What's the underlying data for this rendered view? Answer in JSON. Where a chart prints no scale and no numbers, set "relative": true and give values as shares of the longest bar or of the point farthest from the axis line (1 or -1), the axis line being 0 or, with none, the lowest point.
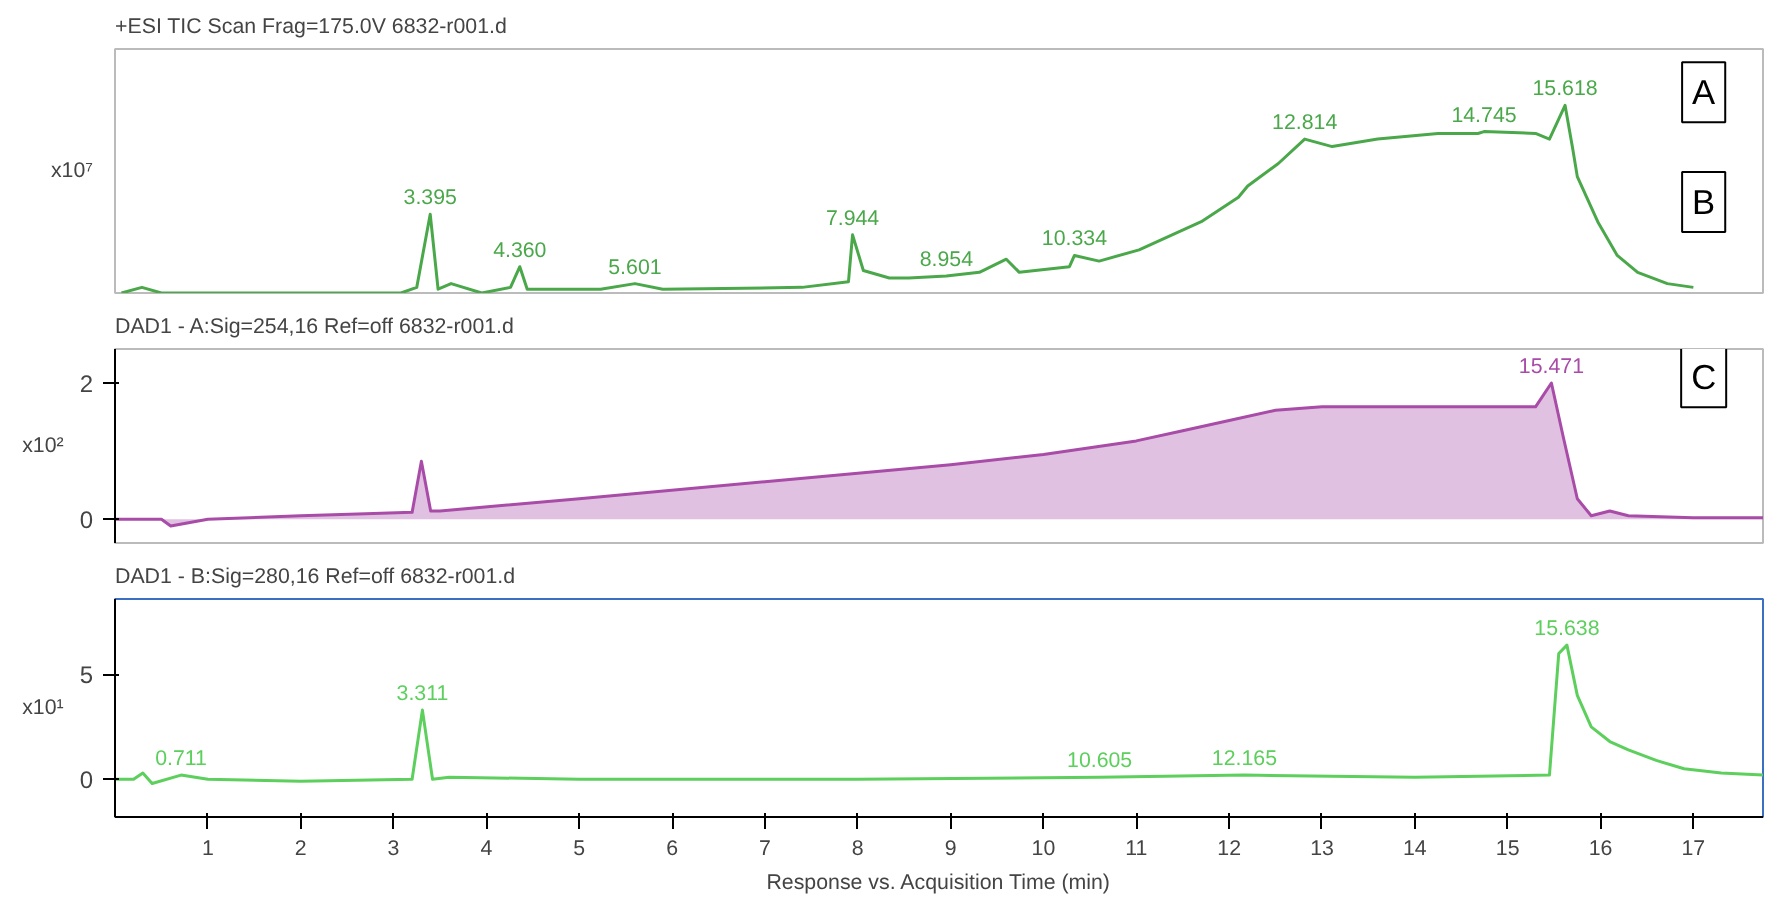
{
  "chart_data": [
    {
      "type": "line",
      "title": "+ESI TIC Scan Frag=175.0V 6832-r001.d",
      "ylabel": "x10⁷",
      "relative": true,
      "xlim": [
        0,
        17.75
      ],
      "tick_labels": "y",
      "series": [
        {
          "color": "#4aa84a",
          "x": [
            0.07,
            0.29,
            0.5,
            3.08,
            3.25,
            3.395,
            3.48,
            3.62,
            3.95,
            4.26,
            4.36,
            4.44,
            5.23,
            5.6,
            5.9,
            7.4,
            7.9,
            7.944,
            8.06,
            8.34,
            8.55,
            8.954,
            9.31,
            9.6,
            9.74,
            10.28,
            10.334,
            10.6,
            11.03,
            11.7,
            12.1,
            12.2,
            12.53,
            12.814,
            13.11,
            13.6,
            14.25,
            14.68,
            14.745,
            15.3,
            15.45,
            15.618,
            15.7,
            15.75,
            15.97,
            16.18,
            16.4,
            16.72,
            17.0
          ],
          "values": [
            0,
            0.03,
            0,
            0,
            0.03,
            0.42,
            0.02,
            0.05,
            0,
            0.03,
            0.14,
            0.02,
            0.02,
            0.05,
            0.02,
            0.03,
            0.06,
            0.31,
            0.12,
            0.08,
            0.08,
            0.09,
            0.11,
            0.18,
            0.11,
            0.14,
            0.2,
            0.17,
            0.23,
            0.38,
            0.51,
            0.57,
            0.69,
            0.82,
            0.78,
            0.82,
            0.85,
            0.85,
            0.86,
            0.85,
            0.82,
            1.0,
            0.77,
            0.62,
            0.38,
            0.2,
            0.11,
            0.05,
            0.03
          ]
        }
      ],
      "annotations": [
        {
          "text": "3.395",
          "x": 3.395,
          "y": 0.42
        },
        {
          "text": "4.360",
          "x": 4.36,
          "y": 0.14
        },
        {
          "text": "5.601",
          "x": 5.6,
          "y": 0.05
        },
        {
          "text": "7.944",
          "x": 7.944,
          "y": 0.31
        },
        {
          "text": "8.954",
          "x": 8.954,
          "y": 0.09
        },
        {
          "text": "10.334",
          "x": 10.334,
          "y": 0.2
        },
        {
          "text": "12.814",
          "x": 12.814,
          "y": 0.82
        },
        {
          "text": "14.745",
          "x": 14.745,
          "y": 0.86
        },
        {
          "text": "15.618",
          "x": 15.618,
          "y": 1.0
        },
        "A",
        "B"
      ]
    },
    {
      "type": "line",
      "title": "DAD1 - A:Sig=254,16  Ref=off 6832-r001.d",
      "ylabel": "x10²",
      "xlim": [
        0,
        17.75
      ],
      "ylim": [
        -0.35,
        2.5
      ],
      "yticks": [
        0,
        2
      ],
      "tick_labels": "y",
      "series": [
        {
          "type": "area",
          "color": "#a84ca8",
          "x": [
            0,
            0.5,
            0.6,
            1,
            2,
            2.7,
            3.2,
            3.3,
            3.4,
            3.5,
            5,
            7,
            9,
            10,
            11,
            11.5,
            12,
            12.5,
            13,
            14,
            15,
            15.3,
            15.471,
            15.6,
            15.75,
            15.9,
            16.1,
            16.3,
            17,
            17.75
          ],
          "values": [
            0,
            0,
            -0.1,
            0,
            0.05,
            0.08,
            0.1,
            0.85,
            0.12,
            0.12,
            0.3,
            0.55,
            0.8,
            0.95,
            1.15,
            1.3,
            1.45,
            1.6,
            1.65,
            1.65,
            1.65,
            1.65,
            2.0,
            1.2,
            0.3,
            0.05,
            0.12,
            0.05,
            0.02,
            0.02
          ]
        }
      ],
      "annotations": [
        {
          "text": "15.471",
          "x": 15.471,
          "y": 2.0
        },
        "C"
      ]
    },
    {
      "type": "line",
      "title": "DAD1 - B:Sig=280,16  Ref=off 6832-r001.d",
      "ylabel": "x10¹",
      "xlabel": "Response vs. Acquisition Time (min)",
      "xlim": [
        0,
        17.75
      ],
      "ylim": [
        -1.8,
        8.6
      ],
      "yticks": [
        0,
        5
      ],
      "xticks": [
        1,
        2,
        3,
        4,
        5,
        6,
        7,
        8,
        9,
        10,
        11,
        12,
        13,
        14,
        15,
        16,
        17
      ],
      "series": [
        {
          "color": "#5ccf5c",
          "x": [
            0,
            0.2,
            0.3,
            0.4,
            0.711,
            1.0,
            2.0,
            3.2,
            3.311,
            3.42,
            3.6,
            5,
            8,
            10.605,
            12.165,
            14,
            15.45,
            15.55,
            15.638,
            15.75,
            15.9,
            16.1,
            16.3,
            16.6,
            16.9,
            17.3,
            17.75
          ],
          "values": [
            0,
            0,
            0.3,
            -0.2,
            0.2,
            0,
            -0.1,
            0,
            3.3,
            0,
            0.1,
            0,
            0,
            0.1,
            0.2,
            0.1,
            0.2,
            6.0,
            6.4,
            4.0,
            2.5,
            1.8,
            1.4,
            0.9,
            0.5,
            0.3,
            0.2
          ]
        }
      ],
      "annotations": [
        {
          "text": "0.711",
          "x": 0.711,
          "y": 0.2
        },
        {
          "text": "3.311",
          "x": 3.311,
          "y": 3.3
        },
        {
          "text": "10.605",
          "x": 10.605,
          "y": 0.1
        },
        {
          "text": "12.165",
          "x": 12.165,
          "y": 0.2
        },
        {
          "text": "15.638",
          "x": 15.638,
          "y": 6.4
        }
      ]
    }
  ]
}
